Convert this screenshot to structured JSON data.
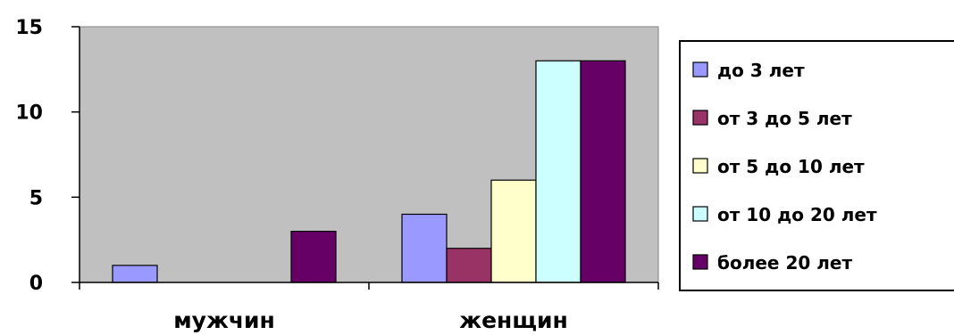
{
  "chart_data": {
    "type": "bar",
    "title": "",
    "xlabel": "",
    "ylabel": "",
    "categories": [
      "мужчин",
      "женщин"
    ],
    "ylim": [
      0,
      15
    ],
    "yticks": [
      0,
      5,
      10,
      15
    ],
    "grid": false,
    "legend_position": "right",
    "plot_background": "#c0c0c0",
    "series": [
      {
        "name": "до 3 лет",
        "color": "#9999ff",
        "values": [
          1,
          4
        ]
      },
      {
        "name": "от 3 до 5 лет",
        "color": "#993366",
        "values": [
          0,
          2
        ]
      },
      {
        "name": "от 5 до 10 лет",
        "color": "#ffffcc",
        "values": [
          0,
          6
        ]
      },
      {
        "name": "от 10 до 20 лет",
        "color": "#ccffff",
        "values": [
          0,
          13
        ]
      },
      {
        "name": "более 20 лет",
        "color": "#660066",
        "values": [
          3,
          13
        ]
      }
    ]
  }
}
